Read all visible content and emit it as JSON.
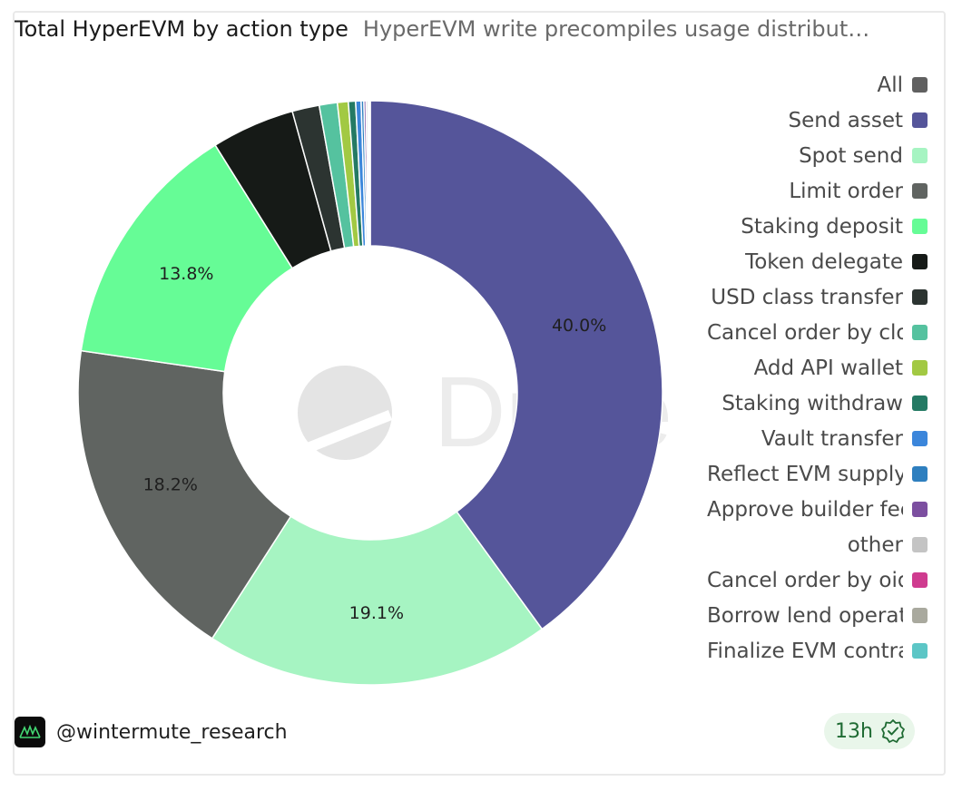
{
  "header": {
    "title": "Total HyperEVM by action type",
    "subtitle": "HyperEVM write precompiles usage distribut…"
  },
  "watermark": "Dune",
  "chart_data": {
    "type": "pie",
    "donut": true,
    "slices": [
      {
        "label": "Send asset",
        "value": 40.0,
        "color": "#55559a",
        "data_label": "40.0%"
      },
      {
        "label": "Spot send",
        "value": 19.1,
        "color": "#a6f4c2",
        "data_label": "19.1%"
      },
      {
        "label": "Limit order",
        "value": 18.2,
        "color": "#606461",
        "data_label": "18.2%"
      },
      {
        "label": "Staking deposit",
        "value": 13.8,
        "color": "#66fc96",
        "data_label": "13.8%"
      },
      {
        "label": "Token delegate",
        "value": 4.6,
        "color": "#161a17",
        "data_label": ""
      },
      {
        "label": "USD class transfer",
        "value": 1.5,
        "color": "#2c3431",
        "data_label": ""
      },
      {
        "label": "Cancel order by cloid",
        "value": 1.0,
        "color": "#55c29f",
        "data_label": ""
      },
      {
        "label": "Add API wallet",
        "value": 0.6,
        "color": "#a2c943",
        "data_label": ""
      },
      {
        "label": "Staking withdraw",
        "value": 0.4,
        "color": "#247a64",
        "data_label": ""
      },
      {
        "label": "Vault transfer",
        "value": 0.3,
        "color": "#3b86db",
        "data_label": ""
      },
      {
        "label": "Reflect EVM supply",
        "value": 0.15,
        "color": "#2e7fbf",
        "data_label": ""
      },
      {
        "label": "Approve builder fee",
        "value": 0.12,
        "color": "#7c4fa0",
        "data_label": ""
      },
      {
        "label": "other",
        "value": 0.1,
        "color": "#c4c4c4",
        "data_label": ""
      },
      {
        "label": "Cancel order by oid",
        "value": 0.06,
        "color": "#cf3b8f",
        "data_label": ""
      },
      {
        "label": "Borrow lend operation",
        "value": 0.04,
        "color": "#a9a99e",
        "data_label": ""
      },
      {
        "label": "Finalize EVM contract",
        "value": 0.03,
        "color": "#5cc6c6",
        "data_label": ""
      }
    ]
  },
  "legend": [
    {
      "label": "All",
      "color": "#606060"
    },
    {
      "label": "Send asset",
      "color": "#55559a"
    },
    {
      "label": "Spot send",
      "color": "#a6f4c2"
    },
    {
      "label": "Limit order",
      "color": "#606461"
    },
    {
      "label": "Staking deposit",
      "color": "#66fc96"
    },
    {
      "label": "Token delegate",
      "color": "#161a17"
    },
    {
      "label": "USD class transfer",
      "color": "#2c3431"
    },
    {
      "label": "Cancel order by cloid",
      "color": "#55c29f"
    },
    {
      "label": "Add API wallet",
      "color": "#a2c943"
    },
    {
      "label": "Staking withdraw",
      "color": "#247a64"
    },
    {
      "label": "Vault transfer",
      "color": "#3b86db"
    },
    {
      "label": "Reflect EVM supply",
      "color": "#2e7fbf"
    },
    {
      "label": "Approve builder fee",
      "color": "#7c4fa0"
    },
    {
      "label": "other",
      "color": "#c4c4c4"
    },
    {
      "label": "Cancel order by oid",
      "color": "#cf3b8f"
    },
    {
      "label": "Borrow lend operation",
      "color": "#a9a99e"
    },
    {
      "label": "Finalize EVM contract",
      "color": "#5cc6c6"
    }
  ],
  "footer": {
    "username": "@wintermute_research",
    "age": "13h"
  }
}
